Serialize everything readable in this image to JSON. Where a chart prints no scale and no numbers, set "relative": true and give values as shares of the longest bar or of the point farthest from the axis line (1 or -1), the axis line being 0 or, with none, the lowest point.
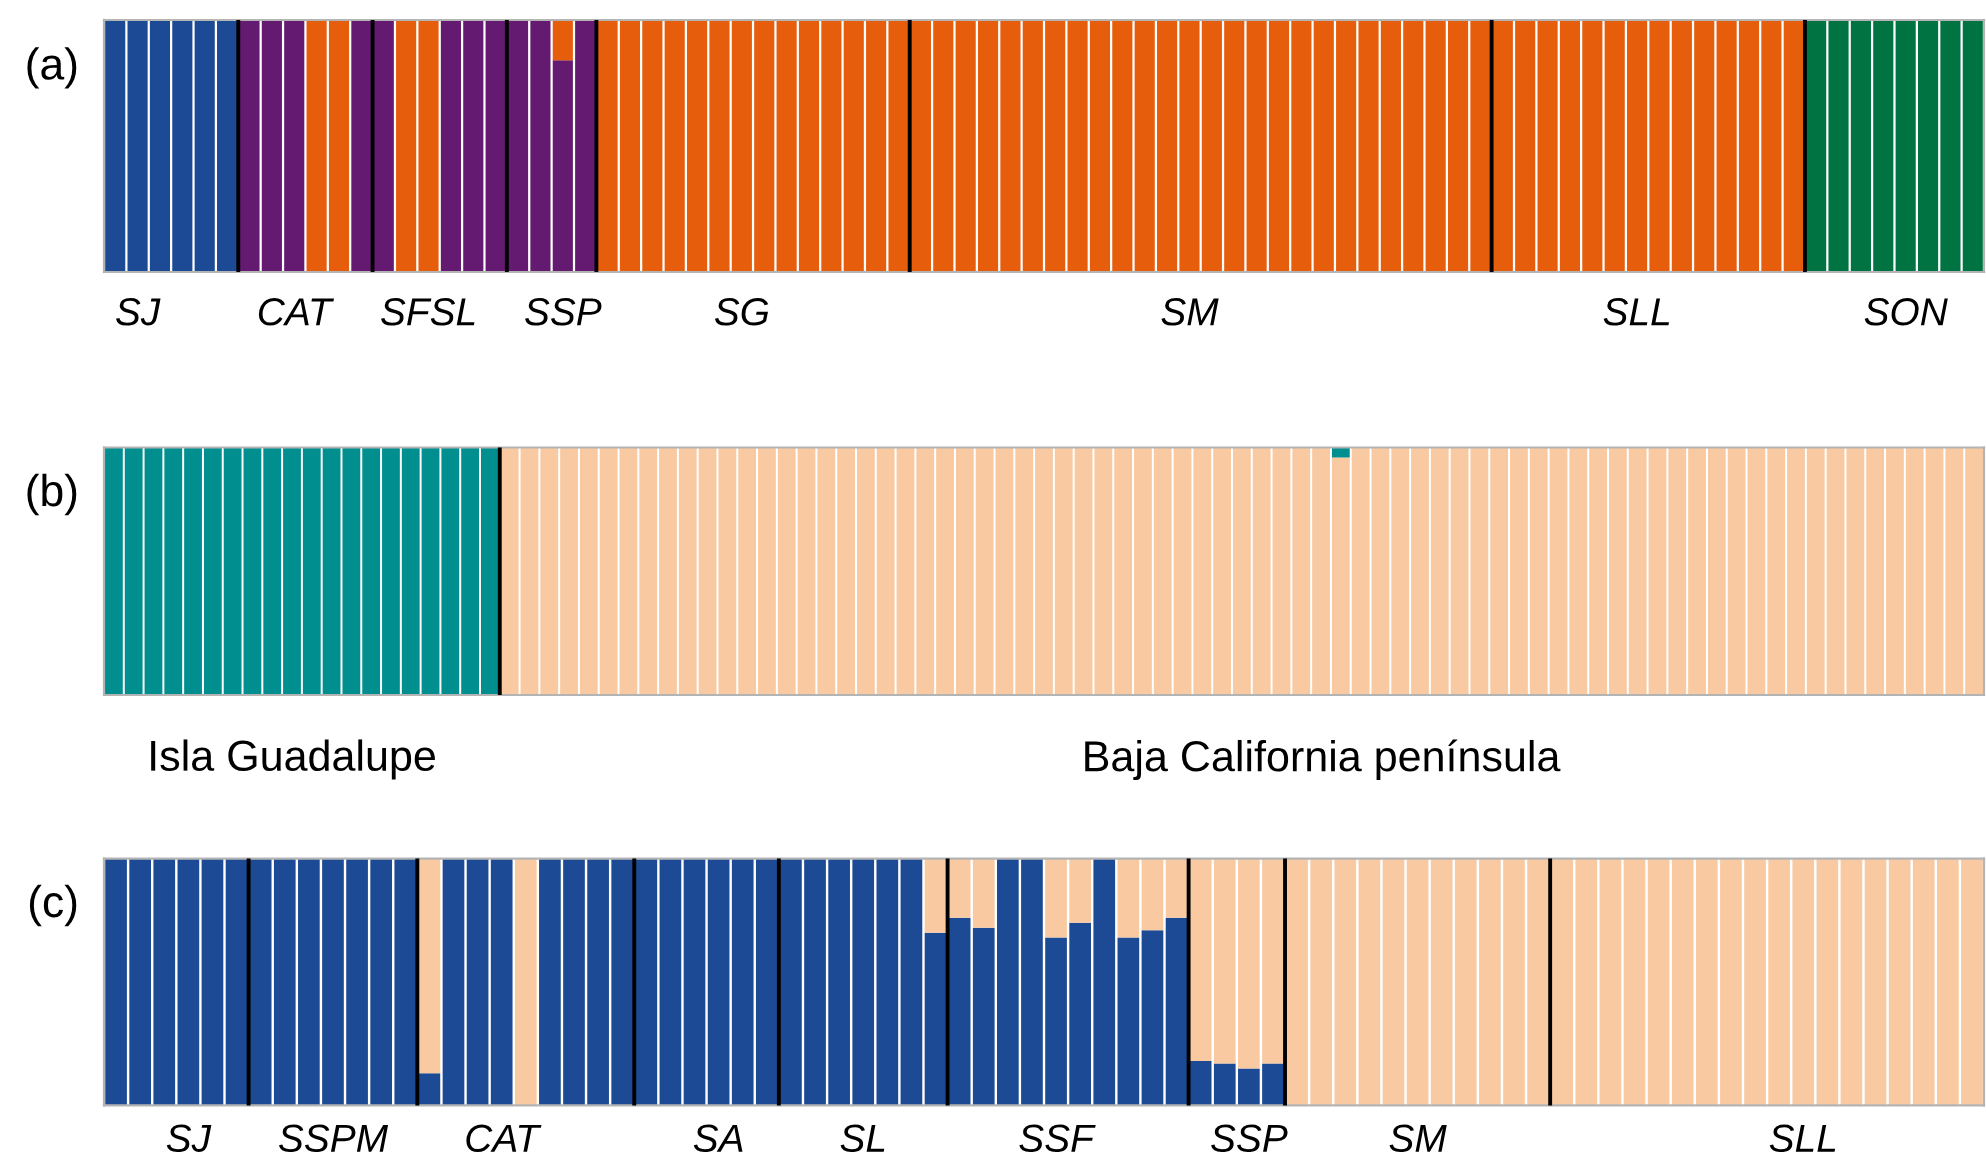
{
  "chart_data": [
    {
      "type": "bar",
      "title": "(a)",
      "stacked": true,
      "relative": true,
      "tick_labels": "x",
      "categories": [
        null,
        "SJ",
        null,
        null,
        null,
        null,
        null,
        null,
        "CAT",
        null,
        null,
        null,
        null,
        null,
        "SFSL",
        null,
        null,
        null,
        null,
        null,
        "SSP",
        null,
        null,
        null,
        null,
        null,
        null,
        null,
        "SG",
        null,
        null,
        null,
        null,
        null,
        null,
        null,
        null,
        null,
        null,
        null,
        null,
        null,
        null,
        null,
        null,
        null,
        null,
        null,
        "SM",
        null,
        null,
        null,
        null,
        null,
        null,
        null,
        null,
        null,
        null,
        null,
        null,
        null,
        null,
        null,
        null,
        null,
        null,
        null,
        "SLL",
        null,
        null,
        null,
        null,
        null,
        null,
        null,
        null,
        null,
        null,
        null,
        "SON",
        null,
        null,
        null
      ],
      "series": [
        {
          "color": "#1c4a95",
          "values": [
            1,
            1,
            1,
            1,
            1,
            1,
            0,
            0,
            0,
            0,
            0,
            0,
            0,
            0,
            0,
            0,
            0,
            0,
            0,
            0,
            0,
            0,
            0,
            0,
            0,
            0,
            0,
            0,
            0,
            0,
            0,
            0,
            0,
            0,
            0,
            0,
            0,
            0,
            0,
            0,
            0,
            0,
            0,
            0,
            0,
            0,
            0,
            0,
            0,
            0,
            0,
            0,
            0,
            0,
            0,
            0,
            0,
            0,
            0,
            0,
            0,
            0,
            0,
            0,
            0,
            0,
            0,
            0,
            0,
            0,
            0,
            0,
            0,
            0,
            0,
            0,
            0,
            0,
            0,
            0,
            0,
            0,
            0,
            0
          ]
        },
        {
          "color": "#641a70",
          "values": [
            0,
            0,
            0,
            0,
            0,
            0,
            1,
            1,
            1,
            0,
            0,
            1,
            1,
            0,
            0,
            1,
            1,
            1,
            1,
            1,
            0.84,
            1,
            0,
            0,
            0,
            0,
            0,
            0,
            0,
            0,
            0,
            0,
            0,
            0,
            0,
            0,
            0,
            0,
            0,
            0,
            0,
            0,
            0,
            0,
            0,
            0,
            0,
            0,
            0,
            0,
            0,
            0,
            0,
            0,
            0,
            0,
            0,
            0,
            0,
            0,
            0,
            0,
            0,
            0,
            0,
            0,
            0,
            0,
            0,
            0,
            0,
            0,
            0,
            0,
            0,
            0,
            0,
            0,
            0,
            0,
            0,
            0,
            0,
            0
          ]
        },
        {
          "color": "#e65d0b",
          "values": [
            0,
            0,
            0,
            0,
            0,
            0,
            0,
            0,
            0,
            1,
            1,
            0,
            0,
            1,
            1,
            0,
            0,
            0,
            0,
            0,
            0.16,
            0,
            1,
            1,
            1,
            1,
            1,
            1,
            1,
            1,
            1,
            1,
            1,
            1,
            1,
            1,
            1,
            1,
            1,
            1,
            1,
            1,
            1,
            1,
            1,
            1,
            1,
            1,
            1,
            1,
            1,
            1,
            1,
            1,
            1,
            1,
            1,
            1,
            1,
            1,
            1,
            1,
            1,
            1,
            1,
            1,
            1,
            1,
            1,
            1,
            1,
            1,
            1,
            1,
            1,
            1,
            0,
            0,
            0,
            0,
            0,
            0,
            0,
            0
          ]
        },
        {
          "color": "#007342",
          "values": [
            0,
            0,
            0,
            0,
            0,
            0,
            0,
            0,
            0,
            0,
            0,
            0,
            0,
            0,
            0,
            0,
            0,
            0,
            0,
            0,
            0,
            0,
            0,
            0,
            0,
            0,
            0,
            0,
            0,
            0,
            0,
            0,
            0,
            0,
            0,
            0,
            0,
            0,
            0,
            0,
            0,
            0,
            0,
            0,
            0,
            0,
            0,
            0,
            0,
            0,
            0,
            0,
            0,
            0,
            0,
            0,
            0,
            0,
            0,
            0,
            0,
            0,
            0,
            0,
            0,
            0,
            0,
            0,
            0,
            0,
            0,
            0,
            0,
            0,
            0,
            0,
            1,
            1,
            1,
            1,
            1,
            1,
            1,
            1
          ]
        }
      ]
    },
    {
      "type": "bar",
      "title": "(b)",
      "stacked": true,
      "relative": true,
      "tick_labels": "x",
      "categories": [
        null,
        null,
        null,
        null,
        null,
        null,
        null,
        null,
        null,
        "Isla Guadalupe",
        null,
        null,
        null,
        null,
        null,
        null,
        null,
        null,
        null,
        null,
        null,
        null,
        null,
        null,
        null,
        null,
        null,
        null,
        null,
        null,
        null,
        null,
        null,
        null,
        null,
        null,
        null,
        null,
        null,
        null,
        null,
        null,
        null,
        null,
        null,
        null,
        null,
        null,
        null,
        null,
        null,
        null,
        null,
        null,
        null,
        null,
        null,
        null,
        null,
        null,
        null,
        "Baja California península",
        null,
        null,
        null,
        null,
        null,
        null,
        null,
        null,
        null,
        null,
        null,
        null,
        null,
        null,
        null,
        null,
        null,
        null,
        null,
        null,
        null,
        null,
        null,
        null,
        null,
        null,
        null,
        null,
        null,
        null,
        null,
        null,
        null
      ],
      "series": [
        {
          "color": "#f9caa2",
          "values": [
            0,
            0,
            0,
            0,
            0,
            0,
            0,
            0,
            0,
            0,
            0,
            0,
            0,
            0,
            0,
            0,
            0,
            0,
            0,
            0,
            1,
            1,
            1,
            1,
            1,
            1,
            1,
            1,
            1,
            1,
            1,
            1,
            1,
            1,
            1,
            1,
            1,
            1,
            1,
            1,
            1,
            1,
            1,
            1,
            1,
            1,
            1,
            1,
            1,
            1,
            1,
            1,
            1,
            1,
            1,
            1,
            1,
            1,
            1,
            1,
            1,
            1,
            0.96,
            1,
            1,
            1,
            1,
            1,
            1,
            1,
            1,
            1,
            1,
            1,
            1,
            1,
            1,
            1,
            1,
            1,
            1,
            1,
            1,
            1,
            1,
            1,
            1,
            1,
            1,
            1,
            1,
            1,
            1,
            1,
            1
          ]
        },
        {
          "color": "#008f8e",
          "values": [
            1,
            1,
            1,
            1,
            1,
            1,
            1,
            1,
            1,
            1,
            1,
            1,
            1,
            1,
            1,
            1,
            1,
            1,
            1,
            1,
            0,
            0,
            0,
            0,
            0,
            0,
            0,
            0,
            0,
            0,
            0,
            0,
            0,
            0,
            0,
            0,
            0,
            0,
            0,
            0,
            0,
            0,
            0,
            0,
            0,
            0,
            0,
            0,
            0,
            0,
            0,
            0,
            0,
            0,
            0,
            0,
            0,
            0,
            0,
            0,
            0,
            0,
            0.04,
            0,
            0,
            0,
            0,
            0,
            0,
            0,
            0,
            0,
            0,
            0,
            0,
            0,
            0,
            0,
            0,
            0,
            0,
            0,
            0,
            0,
            0,
            0,
            0,
            0,
            0,
            0,
            0,
            0,
            0,
            0,
            0
          ]
        }
      ]
    },
    {
      "type": "bar",
      "title": "(c)",
      "stacked": true,
      "relative": true,
      "tick_labels": "x",
      "categories": [
        null,
        null,
        null,
        "SJ",
        null,
        null,
        null,
        null,
        null,
        "SSPM",
        null,
        null,
        null,
        null,
        null,
        null,
        "CAT",
        null,
        null,
        null,
        null,
        null,
        null,
        null,
        null,
        "SA",
        null,
        null,
        null,
        null,
        null,
        "SL",
        null,
        null,
        null,
        null,
        null,
        null,
        null,
        "SSF",
        null,
        null,
        null,
        null,
        null,
        null,
        null,
        "SSP",
        null,
        null,
        null,
        null,
        null,
        null,
        "SM",
        null,
        null,
        null,
        null,
        null,
        null,
        null,
        null,
        null,
        null,
        null,
        null,
        null,
        null,
        null,
        "SLL",
        null,
        null,
        null,
        null,
        null,
        null,
        null
      ],
      "series": [
        {
          "color": "#1c4a95",
          "values": [
            1,
            1,
            1,
            1,
            1,
            1,
            1,
            1,
            1,
            1,
            1,
            1,
            1,
            0.13,
            1,
            1,
            1,
            0,
            1,
            1,
            1,
            1,
            1,
            1,
            1,
            1,
            1,
            1,
            1,
            1,
            1,
            1,
            1,
            1,
            0.7,
            0.76,
            0.72,
            1,
            1,
            0.68,
            0.74,
            1,
            0.68,
            0.71,
            0.76,
            0.18,
            0.17,
            0.15,
            0.17,
            0,
            0,
            0,
            0,
            0,
            0,
            0,
            0,
            0,
            0,
            0,
            0,
            0,
            0,
            0,
            0,
            0,
            0,
            0,
            0,
            0,
            0,
            0,
            0,
            0,
            0,
            0,
            0,
            0
          ]
        },
        {
          "color": "#f9caa2",
          "values": [
            0,
            0,
            0,
            0,
            0,
            0,
            0,
            0,
            0,
            0,
            0,
            0,
            0,
            0.87,
            0,
            0,
            0,
            1,
            0,
            0,
            0,
            0,
            0,
            0,
            0,
            0,
            0,
            0,
            0,
            0,
            0,
            0,
            0,
            0,
            0.3,
            0.24,
            0.28,
            0,
            0,
            0.32,
            0.26,
            0,
            0.32,
            0.29,
            0.24,
            0.82,
            0.83,
            0.85,
            0.83,
            1,
            1,
            1,
            1,
            1,
            1,
            1,
            1,
            1,
            1,
            1,
            1,
            1,
            1,
            1,
            1,
            1,
            1,
            1,
            1,
            1,
            1,
            1,
            1,
            1,
            1,
            1,
            1,
            1
          ]
        }
      ]
    }
  ]
}
